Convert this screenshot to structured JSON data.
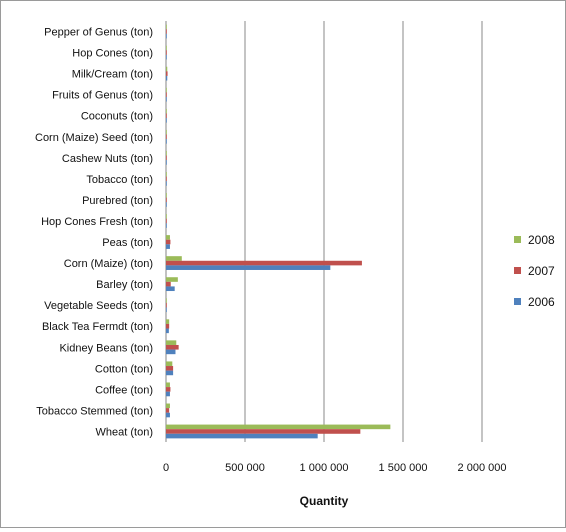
{
  "chart_data": {
    "type": "bar",
    "orientation": "horizontal",
    "categories": [
      "Pepper of Genus (ton)",
      "Hop Cones (ton)",
      "Milk/Cream (ton)",
      "Fruits of Genus (ton)",
      "Coconuts (ton)",
      "Corn (Maize) Seed (ton)",
      "Cashew Nuts (ton)",
      "Tobacco (ton)",
      "Purebred (ton)",
      "Hop Cones Fresh (ton)",
      "Peas (ton)",
      "Corn (Maize) (ton)",
      "Barley (ton)",
      "Vegetable Seeds (ton)",
      "Black Tea Fermdt (ton)",
      "Kidney Beans (ton)",
      "Cotton (ton)",
      "Coffee (ton)",
      "Tobacco Stemmed (ton)",
      "Wheat (ton)"
    ],
    "series": [
      {
        "name": "2008",
        "color": "#9BBB59",
        "values": [
          4000,
          2000,
          8000,
          2000,
          3000,
          3000,
          2000,
          2000,
          1000,
          1000,
          25000,
          100000,
          75000,
          3000,
          20000,
          65000,
          40000,
          25000,
          25000,
          1420000
        ]
      },
      {
        "name": "2007",
        "color": "#C0504D",
        "values": [
          5000,
          3000,
          10000,
          2000,
          3000,
          4000,
          3000,
          3000,
          2000,
          1000,
          28000,
          1240000,
          30000,
          4000,
          20000,
          80000,
          45000,
          28000,
          20000,
          1230000
        ]
      },
      {
        "name": "2006",
        "color": "#4F81BD",
        "values": [
          3000,
          3000,
          8000,
          2000,
          3000,
          3000,
          2000,
          2000,
          1000,
          1000,
          25000,
          1040000,
          55000,
          3000,
          18000,
          60000,
          45000,
          25000,
          25000,
          960000
        ]
      }
    ],
    "xlabel": "Quantity",
    "xlim": [
      0,
      2000000
    ],
    "xticks": [
      0,
      500000,
      1000000,
      1500000,
      2000000
    ],
    "xtick_labels": [
      "0",
      "500 000",
      "1 000 000",
      "1 500 000",
      "2 000 000"
    ],
    "legend_order": [
      "2008",
      "2007",
      "2006"
    ],
    "legend_position": "right",
    "grid": "vertical"
  }
}
